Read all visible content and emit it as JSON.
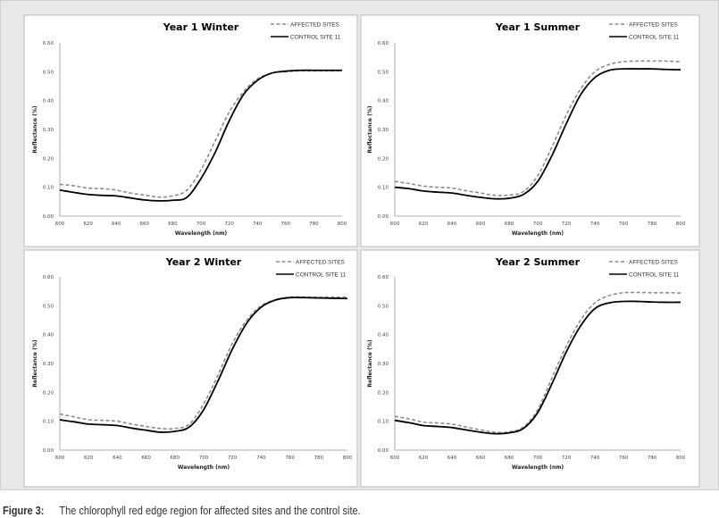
{
  "caption": {
    "label": "Figure 3:",
    "text": "The chlorophyll red edge region for affected sites and the control site."
  },
  "colors": {
    "affected": "#8c8c8c",
    "control": "#000000",
    "background": "#e8e8e8"
  },
  "chart_data": [
    {
      "type": "line",
      "title": "Year 1 Winter",
      "xlabel": "Wavelength (nm)",
      "ylabel": "Reflectance (%)",
      "xlim": [
        600,
        800
      ],
      "ylim": [
        0,
        0.6
      ],
      "xticks": [
        "600",
        "620",
        "640",
        "660",
        "680",
        "700",
        "720",
        "740",
        "760",
        "780",
        "800"
      ],
      "yticks": [
        "0.00",
        "0.10",
        "0.20",
        "0.30",
        "0.40",
        "0.50",
        "0.60"
      ],
      "legend": "top-right",
      "grid": false,
      "x": [
        600,
        610,
        620,
        630,
        640,
        650,
        660,
        670,
        680,
        690,
        700,
        710,
        720,
        730,
        740,
        750,
        760,
        770,
        780,
        790,
        800
      ],
      "series": [
        {
          "name": "AFFECTED SITES",
          "style": "dashed",
          "values": [
            0.11,
            0.105,
            0.097,
            0.095,
            0.09,
            0.08,
            0.073,
            0.066,
            0.07,
            0.09,
            0.16,
            0.26,
            0.36,
            0.43,
            0.475,
            0.495,
            0.5,
            0.503,
            0.503,
            0.503,
            0.503
          ]
        },
        {
          "name": "CONTROL SITE 11",
          "style": "solid",
          "values": [
            0.09,
            0.082,
            0.075,
            0.072,
            0.07,
            0.063,
            0.056,
            0.053,
            0.055,
            0.065,
            0.13,
            0.22,
            0.33,
            0.42,
            0.47,
            0.495,
            0.502,
            0.505,
            0.505,
            0.505,
            0.505
          ]
        }
      ]
    },
    {
      "type": "line",
      "title": "Year 1 Summer",
      "xlabel": "Wavelength (nm)",
      "ylabel": "Reflectance (%)",
      "xlim": [
        600,
        800
      ],
      "ylim": [
        0,
        0.6
      ],
      "xticks": [
        "600",
        "620",
        "640",
        "660",
        "680",
        "700",
        "720",
        "740",
        "760",
        "780",
        "800"
      ],
      "yticks": [
        "0.00",
        "0.10",
        "0.20",
        "0.30",
        "0.40",
        "0.50",
        "0.60"
      ],
      "legend": "top-right",
      "grid": false,
      "x": [
        600,
        610,
        620,
        630,
        640,
        650,
        660,
        670,
        680,
        690,
        700,
        710,
        720,
        730,
        740,
        750,
        760,
        770,
        780,
        790,
        800
      ],
      "series": [
        {
          "name": "AFFECTED SITES",
          "style": "dashed",
          "values": [
            0.12,
            0.113,
            0.104,
            0.1,
            0.097,
            0.088,
            0.08,
            0.072,
            0.073,
            0.085,
            0.14,
            0.24,
            0.35,
            0.44,
            0.5,
            0.525,
            0.535,
            0.537,
            0.537,
            0.537,
            0.535
          ]
        },
        {
          "name": "CONTROL SITE 11",
          "style": "solid",
          "values": [
            0.1,
            0.095,
            0.087,
            0.083,
            0.08,
            0.072,
            0.065,
            0.06,
            0.062,
            0.075,
            0.12,
            0.21,
            0.32,
            0.42,
            0.48,
            0.505,
            0.51,
            0.51,
            0.51,
            0.508,
            0.507
          ]
        }
      ]
    },
    {
      "type": "line",
      "title": "Year 2 Winter",
      "xlabel": "Wavelength (nm)",
      "ylabel": "Reflectance (%)",
      "xlim": [
        600,
        800
      ],
      "ylim": [
        0,
        0.6
      ],
      "xticks": [
        "600",
        "620",
        "640",
        "660",
        "680",
        "700",
        "720",
        "740",
        "760",
        "780",
        "800"
      ],
      "yticks": [
        "0.00",
        "0.10",
        "0.20",
        "0.30",
        "0.40",
        "0.50",
        "0.60"
      ],
      "legend": "top-right",
      "grid": false,
      "x": [
        600,
        610,
        620,
        630,
        640,
        650,
        660,
        670,
        680,
        690,
        700,
        710,
        720,
        730,
        740,
        750,
        760,
        770,
        780,
        790,
        800
      ],
      "series": [
        {
          "name": "AFFECTED SITES",
          "style": "dashed",
          "values": [
            0.125,
            0.115,
            0.105,
            0.103,
            0.1,
            0.09,
            0.082,
            0.075,
            0.075,
            0.09,
            0.16,
            0.26,
            0.37,
            0.45,
            0.5,
            0.52,
            0.53,
            0.53,
            0.53,
            0.53,
            0.53
          ]
        },
        {
          "name": "CONTROL SITE 11",
          "style": "solid",
          "values": [
            0.105,
            0.098,
            0.09,
            0.088,
            0.085,
            0.076,
            0.069,
            0.062,
            0.065,
            0.08,
            0.14,
            0.24,
            0.35,
            0.44,
            0.495,
            0.52,
            0.528,
            0.528,
            0.527,
            0.526,
            0.525
          ]
        }
      ]
    },
    {
      "type": "line",
      "title": "Year  2 Summer",
      "xlabel": "Wavelength (nm)",
      "ylabel": "Reflectance (%)",
      "xlim": [
        600,
        800
      ],
      "ylim": [
        0,
        0.6
      ],
      "xticks": [
        "600",
        "620",
        "640",
        "660",
        "680",
        "700",
        "720",
        "740",
        "760",
        "780",
        "800"
      ],
      "yticks": [
        "0.00",
        "0.10",
        "0.20",
        "0.30",
        "0.40",
        "0.50",
        "0.60"
      ],
      "legend": "top-right",
      "grid": false,
      "x": [
        600,
        610,
        620,
        630,
        640,
        650,
        660,
        670,
        680,
        690,
        700,
        710,
        720,
        730,
        740,
        750,
        760,
        770,
        780,
        790,
        800
      ],
      "series": [
        {
          "name": "AFFECTED SITES",
          "style": "dashed",
          "values": [
            0.117,
            0.108,
            0.097,
            0.094,
            0.09,
            0.08,
            0.07,
            0.062,
            0.063,
            0.08,
            0.14,
            0.25,
            0.36,
            0.45,
            0.51,
            0.535,
            0.545,
            0.546,
            0.545,
            0.545,
            0.544
          ]
        },
        {
          "name": "CONTROL SITE 11",
          "style": "solid",
          "values": [
            0.103,
            0.095,
            0.085,
            0.082,
            0.078,
            0.07,
            0.062,
            0.057,
            0.06,
            0.075,
            0.13,
            0.23,
            0.34,
            0.43,
            0.49,
            0.51,
            0.515,
            0.515,
            0.513,
            0.512,
            0.512
          ]
        }
      ]
    }
  ]
}
